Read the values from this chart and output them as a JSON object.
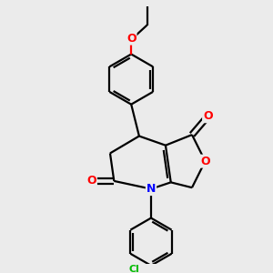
{
  "background_color": "#ebebeb",
  "bond_color": "#000000",
  "atom_colors": {
    "O": "#ff0000",
    "N": "#0000ff",
    "Cl": "#00bb00",
    "C": "#000000"
  },
  "bond_width": 1.6,
  "figsize": [
    3.0,
    3.0
  ],
  "dpi": 100
}
